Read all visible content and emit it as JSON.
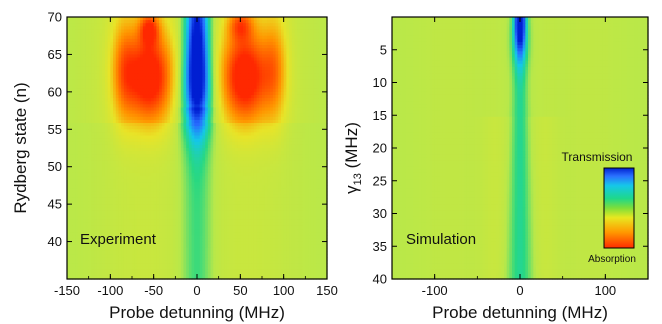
{
  "chart_data": [
    {
      "type": "heatmap",
      "panel_label": "Experiment",
      "xlabel": "Probe detunning (MHz)",
      "ylabel": "Rydberg state (n)",
      "xlim": [
        -150,
        150
      ],
      "ylim": [
        35,
        70
      ],
      "x_ticks": [
        -150,
        -100,
        -50,
        0,
        50,
        100,
        150
      ],
      "y_ticks": [
        40,
        45,
        50,
        55,
        60,
        65,
        70
      ],
      "features": [
        {
          "kind": "transmission",
          "x": 0,
          "y": 67,
          "sx": 10,
          "sy": 7,
          "amp": 1.0
        },
        {
          "kind": "transmission",
          "x": 0,
          "y": 60,
          "sx": 14,
          "sy": 4,
          "amp": 0.55
        },
        {
          "kind": "absorption",
          "x": -55,
          "y": 62,
          "sx": 20,
          "sy": 4.5,
          "amp": 1.0
        },
        {
          "kind": "absorption",
          "x": 55,
          "y": 62,
          "sx": 20,
          "sy": 4.5,
          "amp": 1.0
        },
        {
          "kind": "absorption",
          "x": -85,
          "y": 63,
          "sx": 10,
          "sy": 5,
          "amp": 0.45
        },
        {
          "kind": "absorption",
          "x": 90,
          "y": 63,
          "sx": 10,
          "sy": 5,
          "amp": 0.45
        },
        {
          "kind": "absorption",
          "x": -55,
          "y": 68.5,
          "sx": 8,
          "sy": 1.5,
          "amp": 0.6
        },
        {
          "kind": "absorption",
          "x": 50,
          "y": 69,
          "sx": 10,
          "sy": 1.5,
          "amp": 0.5
        }
      ]
    },
    {
      "type": "heatmap",
      "panel_label": "Simulation",
      "xlabel": "Probe detunning (MHz)",
      "ylabel": "γ13 (MHz)",
      "xlim": [
        -150,
        150
      ],
      "ylim": [
        40,
        0
      ],
      "x_ticks": [
        -100,
        0,
        100
      ],
      "y_ticks": [
        5,
        10,
        15,
        20,
        25,
        30,
        35,
        40
      ],
      "colorbar": {
        "top_label": "Transmission",
        "bottom_label": "Absorption"
      }
    }
  ],
  "colors": {
    "transmission": "#0033ff",
    "background": "#b8e84a",
    "absorption": "#ff2a00"
  }
}
